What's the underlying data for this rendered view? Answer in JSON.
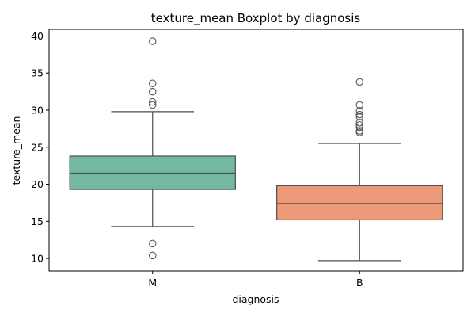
{
  "chart_data": {
    "type": "boxplot",
    "title": "texture_mean Boxplot by diagnosis",
    "xlabel": "diagnosis",
    "ylabel": "texture_mean",
    "ylim": [
      8.3,
      40.9
    ],
    "yticks": [
      10,
      15,
      20,
      25,
      30,
      35,
      40
    ],
    "grid": false,
    "legend": "none",
    "categories": [
      "M",
      "B"
    ],
    "boxes": [
      {
        "category": "M",
        "color": "#73b8a0",
        "whisker_low": 14.3,
        "q1": 19.3,
        "median": 21.5,
        "q3": 23.8,
        "whisker_high": 29.8,
        "outliers": [
          39.3,
          33.6,
          32.5,
          31.1,
          30.7,
          12.0,
          10.4
        ]
      },
      {
        "category": "B",
        "color": "#ec9a77",
        "whisker_low": 9.7,
        "q1": 15.2,
        "median": 17.4,
        "q3": 19.8,
        "whisker_high": 25.5,
        "outliers": [
          33.8,
          30.7,
          29.9,
          29.4,
          29.1,
          28.3,
          28.0,
          27.7,
          27.2,
          27.0
        ]
      }
    ]
  }
}
